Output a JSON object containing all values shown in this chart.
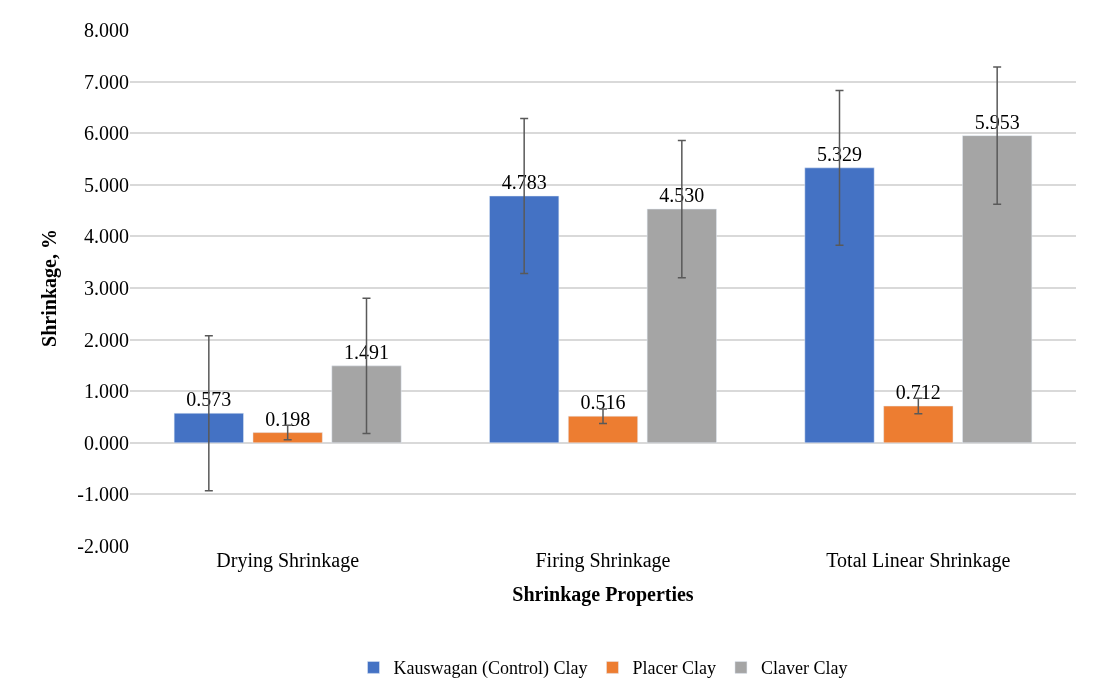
{
  "chart_data": {
    "type": "bar",
    "xlabel": "Shrinkage Properties",
    "ylabel": "Shrinkage, %",
    "categories": [
      "Drying Shrinkage",
      "Firing Shrinkage",
      "Total Linear Shrinkage"
    ],
    "series": [
      {
        "name": "Kauswagan (Control) Clay",
        "color": "#4472c4",
        "values": [
          0.573,
          4.783,
          5.329
        ],
        "errors": [
          1.5,
          1.5,
          1.5
        ]
      },
      {
        "name": "Placer Clay",
        "color": "#ed7d31",
        "values": [
          0.198,
          0.516,
          0.712
        ],
        "errors": [
          0.14,
          0.14,
          0.15
        ]
      },
      {
        "name": "Claver Clay",
        "color": "#a5a5a5",
        "values": [
          1.491,
          4.53,
          5.953
        ],
        "errors": [
          1.31,
          1.33,
          1.33
        ]
      }
    ],
    "value_labels": [
      [
        "0.573",
        "4.783",
        "5.329"
      ],
      [
        "0.198",
        "0.516",
        "0.712"
      ],
      [
        "1.491",
        "4.530",
        "5.953"
      ]
    ],
    "ylim": [
      -2,
      8
    ],
    "yticks": [
      {
        "value": -2,
        "label": "-2.000"
      },
      {
        "value": -1,
        "label": "-1.000"
      },
      {
        "value": 0,
        "label": "0.000"
      },
      {
        "value": 1,
        "label": "1.000"
      },
      {
        "value": 2,
        "label": "2.000"
      },
      {
        "value": 3,
        "label": "3.000"
      },
      {
        "value": 4,
        "label": "4.000"
      },
      {
        "value": 5,
        "label": "5.000"
      },
      {
        "value": 6,
        "label": "6.000"
      },
      {
        "value": 7,
        "label": "7.000"
      },
      {
        "value": 8,
        "label": "8.000"
      }
    ],
    "grid": "y",
    "legend": "bottom"
  }
}
